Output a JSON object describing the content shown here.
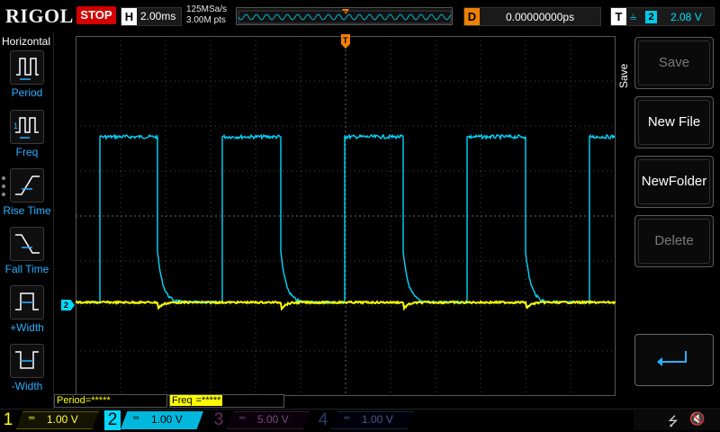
{
  "header": {
    "brand": "RIGOL",
    "run_state": "STOP",
    "horizontal": {
      "label": "H",
      "timebase": "2.00ms"
    },
    "sample_rate": "125MSa/s",
    "memory_depth": "3.00M pts",
    "delay": {
      "label": "D",
      "value": "0.00000000ps"
    },
    "trigger": {
      "label": "T",
      "edge": "⫨",
      "source": "2",
      "level": "2.08 V"
    }
  },
  "left_menu": {
    "title": "Horizontal",
    "items": [
      {
        "label": "Period",
        "icon": "period-icon"
      },
      {
        "label": "Freq",
        "icon": "freq-icon"
      },
      {
        "label": "Rise Time",
        "icon": "rise-time-icon"
      },
      {
        "label": "Fall Time",
        "icon": "fall-time-icon"
      },
      {
        "label": "+Width",
        "icon": "plus-width-icon"
      },
      {
        "label": "-Width",
        "icon": "minus-width-icon"
      }
    ]
  },
  "measurements": {
    "period": "Period=*****",
    "freq_label": "Freq",
    "freq_value": "=*****"
  },
  "right_menu": {
    "title": "Save",
    "keys": [
      {
        "label": "Save",
        "enabled": false
      },
      {
        "label": "New File",
        "enabled": true
      },
      {
        "label": "NewFolder",
        "enabled": true
      },
      {
        "label": "Delete",
        "enabled": false
      }
    ],
    "back_icon": "return-arrow-icon"
  },
  "markers": {
    "ch2_ref": "2",
    "trigger_pos": "T"
  },
  "channels": [
    {
      "num": "1",
      "coupling": "═",
      "scale": "1.00 V",
      "color": "#ffff00",
      "active": true
    },
    {
      "num": "2",
      "coupling": "═",
      "scale": "1.00 V",
      "color": "#00d8ff",
      "active": true
    },
    {
      "num": "3",
      "coupling": "═",
      "scale": "5.00 V",
      "color": "#7a4a7a",
      "active": false
    },
    {
      "num": "4",
      "coupling": "═",
      "scale": "1.00 V",
      "color": "#4a5a8a",
      "active": false
    }
  ],
  "status_icons": [
    "usb-icon",
    "speaker-muted-icon"
  ],
  "colors": {
    "ch1": "#ffff00",
    "ch2": "#00d8ff",
    "trigger": "#f08000",
    "run_stop": "#d40000",
    "menu_label": "#2ab0ff"
  }
}
